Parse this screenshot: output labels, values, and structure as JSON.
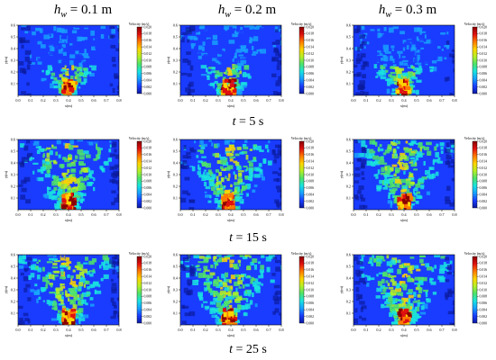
{
  "figure": {
    "column_titles": [
      {
        "symbol": "h",
        "subscript": "w",
        "value": " = 0.1 m"
      },
      {
        "symbol": "h",
        "subscript": "w",
        "value": " = 0.2 m"
      },
      {
        "symbol": "h",
        "subscript": "w",
        "value": " = 0.3 m"
      }
    ],
    "row_captions": [
      {
        "symbol": "t",
        "value": " = 5 s"
      },
      {
        "symbol": "t",
        "value": " = 15 s"
      },
      {
        "symbol": "t",
        "value": " = 25 s"
      }
    ],
    "colors": {
      "background_field": "#1a3cff",
      "colormap": [
        "#0b1b9e",
        "#1a3cff",
        "#18a0ff",
        "#19e3e0",
        "#4de36a",
        "#b6ef25",
        "#ffd400",
        "#ff7a00",
        "#e01010",
        "#8a0000"
      ]
    }
  },
  "chart_data": [
    {
      "type": "heatmap",
      "panel": "hw=0.1 m, t=5 s",
      "xlabel": "x(m)",
      "ylabel": "y(m)",
      "xlim": [
        0,
        0.8
      ],
      "ylim": [
        0,
        0.6
      ],
      "xticks": [
        "0.0",
        "0.1",
        "0.2",
        "0.3",
        "0.4",
        "0.5",
        "0.6",
        "0.7",
        "0.8"
      ],
      "yticks": [
        "0.1",
        "0.2",
        "0.3",
        "0.4",
        "0.5",
        "0.6"
      ],
      "colorbar": {
        "title": "Velocity (m/s)",
        "ticks": [
          "0.000",
          "0.002",
          "0.004",
          "0.006",
          "0.008",
          "0.010",
          "0.012",
          "0.014",
          "0.016",
          "0.018",
          "0.020"
        ],
        "range": [
          0,
          0.02
        ]
      },
      "plume": {
        "center_x": 0.4,
        "top_y": 0.25
      }
    },
    {
      "type": "heatmap",
      "panel": "hw=0.2 m, t=5 s",
      "xlabel": "x(m)",
      "ylabel": "y(m)",
      "xlim": [
        0,
        0.8
      ],
      "ylim": [
        0,
        0.6
      ],
      "xticks": [
        "0.0",
        "0.1",
        "0.2",
        "0.3",
        "0.4",
        "0.5",
        "0.6",
        "0.7",
        "0.8"
      ],
      "yticks": [
        "0.1",
        "0.2",
        "0.3",
        "0.4",
        "0.5",
        "0.6"
      ],
      "colorbar": {
        "title": "Velocity (m/s)",
        "ticks": [
          "0.000",
          "0.002",
          "0.004",
          "0.006",
          "0.008",
          "0.010",
          "0.012",
          "0.014",
          "0.016",
          "0.018",
          "0.020"
        ],
        "range": [
          0,
          0.02
        ]
      },
      "plume": {
        "center_x": 0.38,
        "top_y": 0.25
      }
    },
    {
      "type": "heatmap",
      "panel": "hw=0.3 m, t=5 s",
      "xlabel": "x(m)",
      "ylabel": "y(m)",
      "xlim": [
        0,
        0.8
      ],
      "ylim": [
        0,
        0.6
      ],
      "xticks": [
        "0.0",
        "0.1",
        "0.2",
        "0.3",
        "0.4",
        "0.5",
        "0.6",
        "0.7",
        "0.8"
      ],
      "yticks": [
        "0.1",
        "0.2",
        "0.3",
        "0.4",
        "0.5",
        "0.6"
      ],
      "colorbar": {
        "title": "Velocity (m/s)",
        "ticks": [
          "0.000",
          "0.002",
          "0.004",
          "0.006",
          "0.008",
          "0.010",
          "0.012",
          "0.014",
          "0.016",
          "0.018",
          "0.020"
        ],
        "range": [
          0,
          0.02
        ]
      },
      "plume": {
        "center_x": 0.39,
        "top_y": 0.25
      }
    },
    {
      "type": "heatmap",
      "panel": "hw=0.1 m, t=15 s",
      "xlabel": "x(m)",
      "ylabel": "y(m)",
      "xlim": [
        0,
        0.8
      ],
      "ylim": [
        0,
        0.6
      ],
      "xticks": [
        "0.0",
        "0.1",
        "0.2",
        "0.3",
        "0.4",
        "0.5",
        "0.6",
        "0.7",
        "0.8"
      ],
      "yticks": [
        "0.1",
        "0.2",
        "0.3",
        "0.4",
        "0.5",
        "0.6"
      ],
      "colorbar": {
        "title": "Velocity (m/s)",
        "ticks": [
          "0.000",
          "0.002",
          "0.004",
          "0.006",
          "0.008",
          "0.010",
          "0.012",
          "0.014",
          "0.016",
          "0.018",
          "0.020"
        ],
        "range": [
          0,
          0.02
        ]
      },
      "plume": {
        "center_x": 0.4,
        "top_y": 0.55
      }
    },
    {
      "type": "heatmap",
      "panel": "hw=0.2 m, t=15 s",
      "xlabel": "x(m)",
      "ylabel": "y(m)",
      "xlim": [
        0,
        0.8
      ],
      "ylim": [
        0,
        0.6
      ],
      "xticks": [
        "0.0",
        "0.1",
        "0.2",
        "0.3",
        "0.4",
        "0.5",
        "0.6",
        "0.7",
        "0.8"
      ],
      "yticks": [
        "0.1",
        "0.2",
        "0.3",
        "0.4",
        "0.5",
        "0.6"
      ],
      "colorbar": {
        "title": "Velocity (m/s)",
        "ticks": [
          "0.000",
          "0.002",
          "0.004",
          "0.006",
          "0.008",
          "0.010",
          "0.012",
          "0.014",
          "0.016",
          "0.018",
          "0.020"
        ],
        "range": [
          0,
          0.02
        ]
      },
      "plume": {
        "center_x": 0.38,
        "top_y": 0.55
      }
    },
    {
      "type": "heatmap",
      "panel": "hw=0.3 m, t=15 s",
      "xlabel": "x(m)",
      "ylabel": "y(m)",
      "xlim": [
        0,
        0.8
      ],
      "ylim": [
        0,
        0.6
      ],
      "xticks": [
        "0.0",
        "0.1",
        "0.2",
        "0.3",
        "0.4",
        "0.5",
        "0.6",
        "0.7",
        "0.8"
      ],
      "yticks": [
        "0.1",
        "0.2",
        "0.3",
        "0.4",
        "0.5",
        "0.6"
      ],
      "colorbar": {
        "title": "Velocity (m/s)",
        "ticks": [
          "0.000",
          "0.002",
          "0.004",
          "0.006",
          "0.008",
          "0.010",
          "0.012",
          "0.014",
          "0.016",
          "0.018",
          "0.020"
        ],
        "range": [
          0,
          0.02
        ]
      },
      "plume": {
        "center_x": 0.4,
        "top_y": 0.58
      }
    },
    {
      "type": "heatmap",
      "panel": "hw=0.1 m, t=25 s",
      "xlabel": "x(m)",
      "ylabel": "y(m)",
      "xlim": [
        0,
        0.8
      ],
      "ylim": [
        0,
        0.6
      ],
      "xticks": [
        "0.0",
        "0.1",
        "0.2",
        "0.3",
        "0.4",
        "0.5",
        "0.6",
        "0.7",
        "0.8"
      ],
      "yticks": [
        "0.1",
        "0.2",
        "0.3",
        "0.4",
        "0.5",
        "0.6"
      ],
      "colorbar": {
        "title": "Velocity (m/s)",
        "ticks": [
          "0.000",
          "0.002",
          "0.004",
          "0.006",
          "0.008",
          "0.010",
          "0.012",
          "0.014",
          "0.016",
          "0.018",
          "0.020"
        ],
        "range": [
          0,
          0.02
        ]
      },
      "plume": {
        "center_x": 0.4,
        "top_y": 0.58
      }
    },
    {
      "type": "heatmap",
      "panel": "hw=0.2 m, t=25 s",
      "xlabel": "x(m)",
      "ylabel": "y(m)",
      "xlim": [
        0,
        0.8
      ],
      "ylim": [
        0,
        0.6
      ],
      "xticks": [
        "0.0",
        "0.1",
        "0.2",
        "0.3",
        "0.4",
        "0.5",
        "0.6",
        "0.7",
        "0.8"
      ],
      "yticks": [
        "0.1",
        "0.2",
        "0.3",
        "0.4",
        "0.5",
        "0.6"
      ],
      "colorbar": {
        "title": "Velocity (m/s)",
        "ticks": [
          "0.000",
          "0.002",
          "0.004",
          "0.006",
          "0.008",
          "0.010",
          "0.012",
          "0.014",
          "0.016",
          "0.018",
          "0.020"
        ],
        "range": [
          0,
          0.02
        ]
      },
      "plume": {
        "center_x": 0.38,
        "top_y": 0.6
      }
    },
    {
      "type": "heatmap",
      "panel": "hw=0.3 m, t=25 s",
      "xlabel": "x(m)",
      "ylabel": "y(m)",
      "xlim": [
        0,
        0.8
      ],
      "ylim": [
        0,
        0.6
      ],
      "xticks": [
        "0.0",
        "0.1",
        "0.2",
        "0.3",
        "0.4",
        "0.5",
        "0.6",
        "0.7",
        "0.8"
      ],
      "yticks": [
        "0.1",
        "0.2",
        "0.3",
        "0.4",
        "0.5",
        "0.6"
      ],
      "colorbar": {
        "title": "Velocity (m/s)",
        "ticks": [
          "0.000",
          "0.002",
          "0.004",
          "0.006",
          "0.008",
          "0.010",
          "0.012",
          "0.014",
          "0.016",
          "0.018",
          "0.020"
        ],
        "range": [
          0,
          0.02
        ]
      },
      "plume": {
        "center_x": 0.4,
        "top_y": 0.6
      }
    }
  ]
}
